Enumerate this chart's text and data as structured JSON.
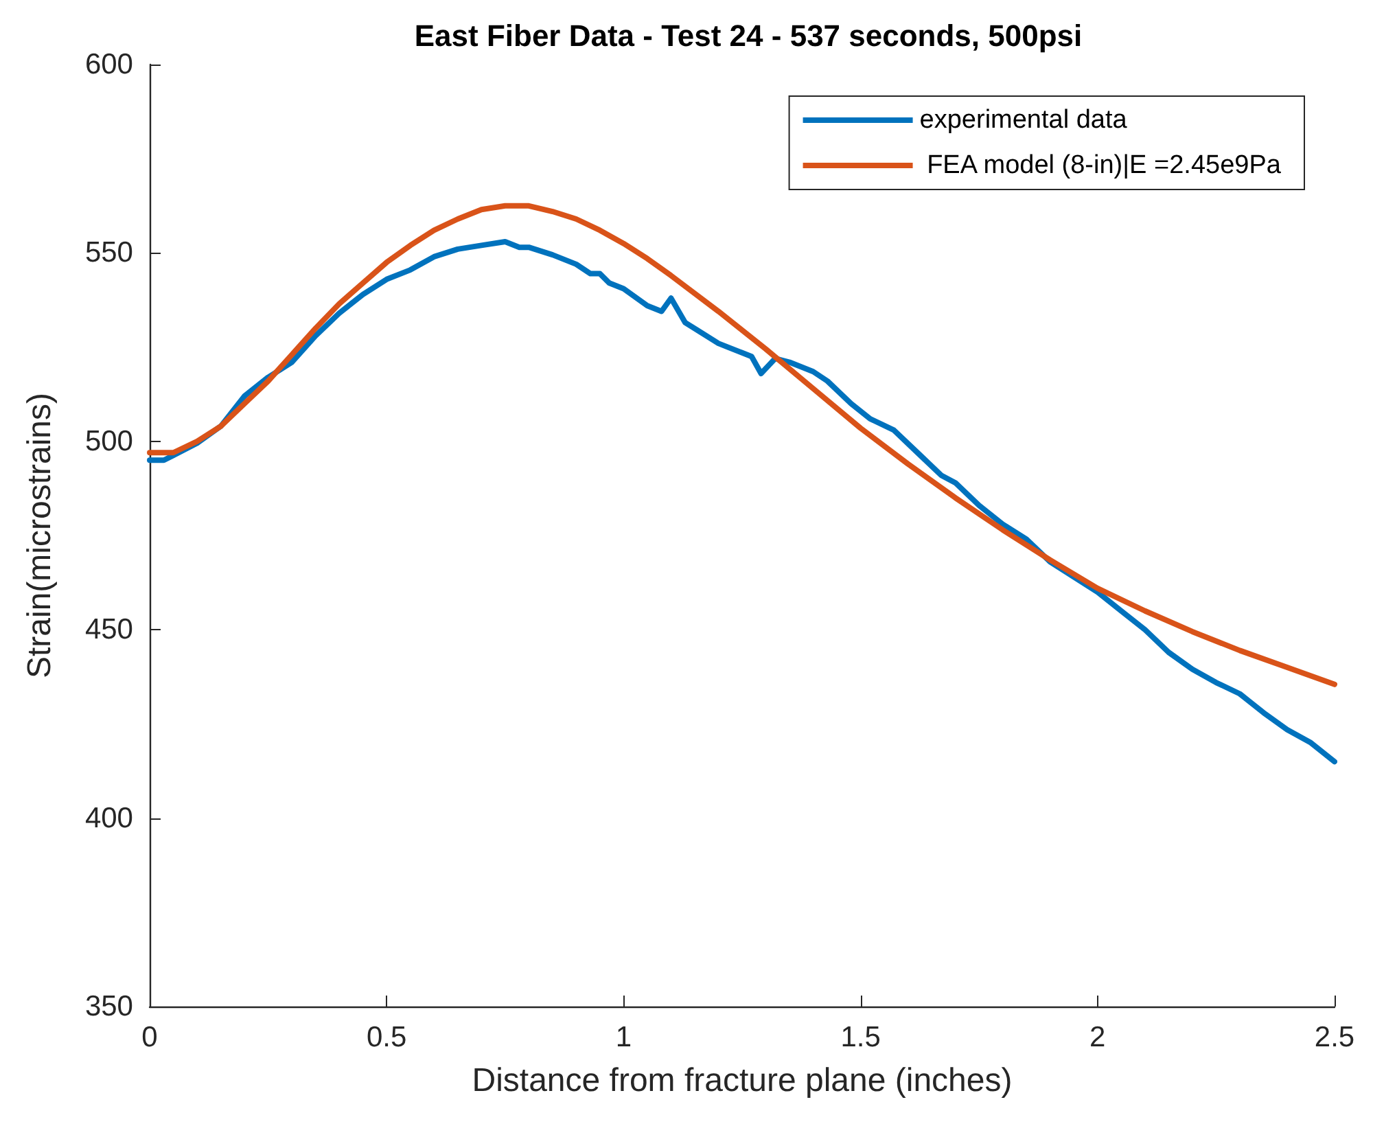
{
  "chart_data": {
    "type": "line",
    "title": "East Fiber Data - Test 24 - 537 seconds, 500psi",
    "xlabel": "Distance from fracture plane (inches)",
    "ylabel": "Strain(microstrains)",
    "xlim": [
      0,
      2.5
    ],
    "xticks": [
      0,
      0.5,
      1,
      1.5,
      2,
      2.5
    ],
    "ylim": [
      350,
      600
    ],
    "yticks": [
      350,
      400,
      450,
      500,
      550,
      600
    ],
    "grid": false,
    "legend": "top right",
    "marker": "none",
    "line_style": "solid",
    "series": [
      {
        "name": "experimental data",
        "color": "#0072bd",
        "x": [
          0,
          0.03,
          0.1,
          0.15,
          0.2,
          0.25,
          0.3,
          0.35,
          0.4,
          0.45,
          0.5,
          0.55,
          0.6,
          0.65,
          0.7,
          0.75,
          0.78,
          0.8,
          0.85,
          0.9,
          0.93,
          0.95,
          0.97,
          1.0,
          1.05,
          1.08,
          1.1,
          1.13,
          1.2,
          1.25,
          1.27,
          1.29,
          1.32,
          1.35,
          1.4,
          1.43,
          1.48,
          1.52,
          1.57,
          1.62,
          1.67,
          1.7,
          1.75,
          1.8,
          1.85,
          1.9,
          1.95,
          2.0,
          2.05,
          2.1,
          2.15,
          2.2,
          2.25,
          2.3,
          2.35,
          2.4,
          2.45,
          2.5
        ],
        "values": [
          495,
          495,
          499.5,
          504,
          512,
          517,
          521,
          528,
          534,
          539,
          543,
          545.5,
          549,
          551,
          552,
          553,
          551.5,
          551.5,
          549.5,
          547,
          544.5,
          544.5,
          542,
          540.5,
          536,
          534.5,
          538,
          531.5,
          526,
          523.5,
          522.5,
          518,
          522,
          521,
          518.5,
          516,
          510,
          506,
          503,
          497,
          491,
          489,
          483,
          478,
          474,
          468,
          464,
          460,
          455,
          450,
          444,
          439.5,
          436,
          433,
          428,
          423.5,
          420,
          415
        ]
      },
      {
        "name": " FEA model (8-in)|E =2.45e9Pa",
        "color": "#d95319",
        "x": [
          0,
          0.05,
          0.1,
          0.15,
          0.2,
          0.25,
          0.3,
          0.35,
          0.4,
          0.45,
          0.5,
          0.55,
          0.6,
          0.65,
          0.7,
          0.75,
          0.8,
          0.85,
          0.9,
          0.95,
          1.0,
          1.05,
          1.1,
          1.2,
          1.3,
          1.4,
          1.5,
          1.6,
          1.7,
          1.8,
          1.9,
          2.0,
          2.1,
          2.2,
          2.3,
          2.4,
          2.5
        ],
        "values": [
          497,
          497,
          500,
          504,
          510,
          516,
          523,
          530,
          536.5,
          542,
          547.5,
          552,
          556,
          559,
          561.5,
          562.5,
          562.5,
          561,
          559,
          556,
          552.5,
          548.5,
          544,
          534.5,
          524.5,
          514,
          503.5,
          494,
          485,
          476.5,
          468.5,
          461,
          455,
          449.5,
          444.5,
          440,
          435.5
        ]
      }
    ]
  }
}
